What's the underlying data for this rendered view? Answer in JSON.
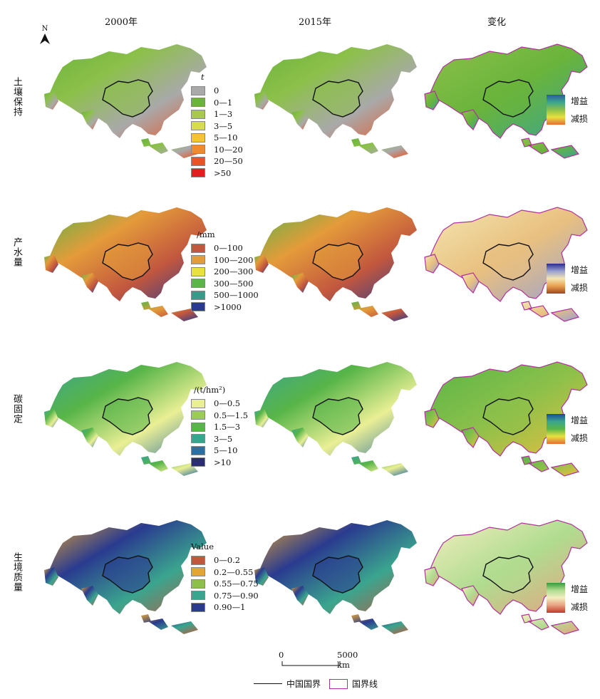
{
  "columns": [
    "2000年",
    "2015年",
    "变化"
  ],
  "rows": [
    "土壤保持",
    "产水量",
    "碳固定",
    "生境质量"
  ],
  "north_label": "N",
  "legends": [
    {
      "title": "t",
      "items": [
        {
          "label": "0",
          "color": "#a9a9a9"
        },
        {
          "label": "0—1",
          "color": "#6ab43c"
        },
        {
          "label": "1—3",
          "color": "#a8c94a"
        },
        {
          "label": "3—5",
          "color": "#d7dc4a"
        },
        {
          "label": "5—10",
          "color": "#f4c531"
        },
        {
          "label": "10—20",
          "color": "#f28a2b"
        },
        {
          "label": "20—50",
          "color": "#ea5424"
        },
        {
          "label": ">50",
          "color": "#e02020"
        }
      ]
    },
    {
      "title": "/mm",
      "items": [
        {
          "label": "0—100",
          "color": "#c2573e"
        },
        {
          "label": "100—200",
          "color": "#e49b3a"
        },
        {
          "label": "200—300",
          "color": "#e8e13f"
        },
        {
          "label": "300—500",
          "color": "#5bb549"
        },
        {
          "label": "500—1000",
          "color": "#3a9a8a"
        },
        {
          "label": ">1000",
          "color": "#2a3b8f"
        }
      ]
    },
    {
      "title": "/(t/hm²)",
      "items": [
        {
          "label": "0—0.5",
          "color": "#eaef95"
        },
        {
          "label": "0.5—1.5",
          "color": "#9ccc58"
        },
        {
          "label": "1.5—3",
          "color": "#58b548"
        },
        {
          "label": "3—5",
          "color": "#3aa58e"
        },
        {
          "label": "5—10",
          "color": "#2e6fa0"
        },
        {
          "label": ">10",
          "color": "#2a2e6e"
        }
      ]
    },
    {
      "title": "Value",
      "items": [
        {
          "label": "0—0.2",
          "color": "#c2573e"
        },
        {
          "label": "0.2—0.55",
          "color": "#e4a532"
        },
        {
          "label": "0.55—0.75",
          "color": "#8cc04a"
        },
        {
          "label": "0.75—0.90",
          "color": "#3aa58e"
        },
        {
          "label": "0.90—1",
          "color": "#2a3b8f"
        }
      ]
    }
  ],
  "change_legends": [
    {
      "gain": "增益",
      "loss": "减损",
      "gradient": [
        "#2a5aa0",
        "#3aa58e",
        "#8cc04a",
        "#e8e13f",
        "#ea6a30"
      ]
    },
    {
      "gain": "增益",
      "loss": "减损",
      "gradient": [
        "#2a2e8f",
        "#9aa0d0",
        "#f4e6b0",
        "#e8a050",
        "#a0461e"
      ]
    },
    {
      "gain": "增益",
      "loss": "减损",
      "gradient": [
        "#1a4a9a",
        "#3aa58e",
        "#58b548",
        "#e8e13f",
        "#ea6a30"
      ]
    },
    {
      "gain": "增益",
      "loss": "减损",
      "gradient": [
        "#3a9a3a",
        "#b0dc90",
        "#f4eec0",
        "#e8a080",
        "#c03a2a"
      ]
    }
  ],
  "scale_bar": {
    "start": "0",
    "end": "5000 km"
  },
  "bottom_legend": {
    "china": "中国国界",
    "national": "国界线"
  },
  "colors": {
    "china_border": "#111111",
    "national_border": "#b0329a"
  }
}
